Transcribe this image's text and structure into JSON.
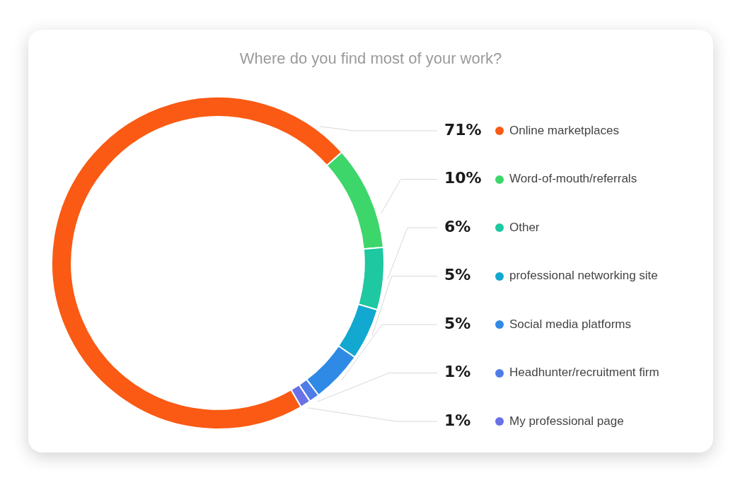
{
  "chart_data": {
    "type": "donut",
    "title": "Where do you find most of your work?",
    "categories": [
      "Online marketplaces",
      "Word-of-mouth/referrals",
      "Other",
      "professional networking site",
      "Social media platforms",
      "Headhunter/recruitment firm",
      "My professional page"
    ],
    "values": [
      71,
      10,
      6,
      5,
      5,
      1,
      1
    ],
    "colors": [
      "#fa5a14",
      "#3dd66a",
      "#1ec8a0",
      "#12a8d0",
      "#2f8ae6",
      "#4f7de8",
      "#6a70e6"
    ],
    "legend": "right",
    "value_labels": [
      "71%",
      "10%",
      "6%",
      "5%",
      "5%",
      "1%",
      "1%"
    ]
  }
}
